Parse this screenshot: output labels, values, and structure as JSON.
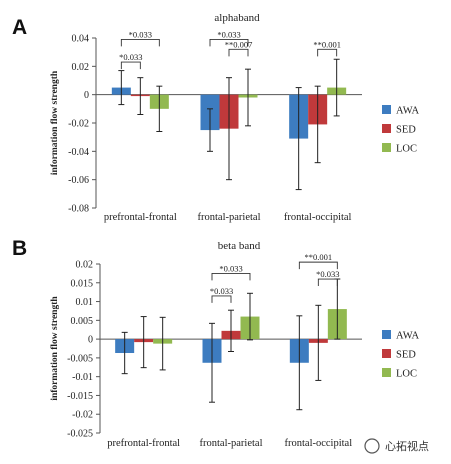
{
  "chart_data": [
    {
      "panel": "A",
      "type": "bar",
      "title": "alphaband",
      "ylabel": "information flow strength",
      "xlabel": "",
      "ylim": [
        -0.08,
        0.04
      ],
      "yticks": [
        "0.04",
        "0.02",
        "0",
        "-0.02",
        "-0.04",
        "-0.06",
        "-0.08"
      ],
      "categories": [
        "prefrontal-frontal",
        "frontal-parietal",
        "frontal-occipital"
      ],
      "series": [
        {
          "name": "AWA",
          "color": "#3d7cc0",
          "values": [
            0.005,
            -0.025,
            -0.031
          ],
          "err": [
            0.012,
            0.015,
            0.036
          ]
        },
        {
          "name": "SED",
          "color": "#c0393b",
          "values": [
            -0.001,
            -0.024,
            -0.021
          ],
          "err": [
            0.013,
            0.036,
            0.027
          ]
        },
        {
          "name": "LOC",
          "color": "#92b950",
          "values": [
            -0.01,
            -0.002,
            0.005
          ],
          "err": [
            0.016,
            0.02,
            0.02
          ]
        }
      ],
      "legend": "right",
      "grid": false,
      "annotations": [
        {
          "text": "*0.033",
          "category": 0,
          "from": 0,
          "to": 2,
          "level": 0.039
        },
        {
          "text": "*0.033",
          "category": 0,
          "from": 0,
          "to": 1,
          "level": 0.023
        },
        {
          "text": "*0.033",
          "category": 1,
          "from": 0,
          "to": 2,
          "level": 0.039
        },
        {
          "text": "**0.007",
          "category": 1,
          "from": 1,
          "to": 2,
          "level": 0.032
        },
        {
          "text": "**0.001",
          "category": 2,
          "from": 1,
          "to": 2,
          "level": 0.032
        }
      ]
    },
    {
      "panel": "B",
      "type": "bar",
      "title": "beta band",
      "ylabel": "information flow strength",
      "xlabel": "",
      "ylim": [
        -0.025,
        0.02
      ],
      "yticks": [
        "0.02",
        "0.015",
        "0.01",
        "0.005",
        "0",
        "-0.005",
        "-0.01",
        "-0.015",
        "-0.02",
        "-0.025"
      ],
      "categories": [
        "prefrontal-frontal",
        "frontal-parietal",
        "frontal-occipital"
      ],
      "series": [
        {
          "name": "AWA",
          "color": "#3d7cc0",
          "values": [
            -0.0037,
            -0.0063,
            -0.0063
          ],
          "err": [
            0.0055,
            0.0105,
            0.0125
          ]
        },
        {
          "name": "SED",
          "color": "#c0393b",
          "values": [
            -0.0008,
            0.0022,
            -0.001
          ],
          "err": [
            0.0068,
            0.0055,
            0.01
          ]
        },
        {
          "name": "LOC",
          "color": "#92b950",
          "values": [
            -0.0012,
            0.006,
            0.008
          ],
          "err": [
            0.007,
            0.0062,
            0.008
          ]
        }
      ],
      "legend": "right",
      "grid": false,
      "annotations": [
        {
          "text": "*0.033",
          "category": 1,
          "from": 0,
          "to": 2,
          "level": 0.0175
        },
        {
          "text": "*0.033",
          "category": 1,
          "from": 0,
          "to": 1,
          "level": 0.0115
        },
        {
          "text": "**0.001",
          "category": 2,
          "from": 0,
          "to": 2,
          "level": 0.0205
        },
        {
          "text": "*0.033",
          "category": 2,
          "from": 1,
          "to": 2,
          "level": 0.016
        }
      ]
    }
  ],
  "watermark": "心拓视点"
}
